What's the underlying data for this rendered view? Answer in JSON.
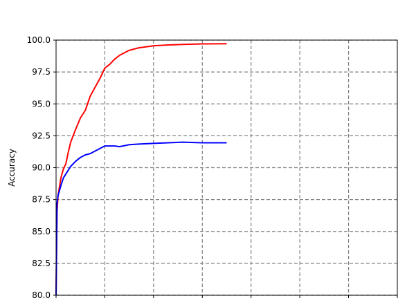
{
  "chart_data": {
    "type": "line",
    "title": "",
    "xlabel": "",
    "ylabel": "Accuracy",
    "ylim": [
      80.0,
      100.0
    ],
    "y_ticks": [
      "80.0",
      "82.5",
      "85.0",
      "87.5",
      "90.0",
      "92.5",
      "95.0",
      "97.5",
      "100.0"
    ],
    "x_ticks": [],
    "xlim": [
      0,
      700
    ],
    "grid": true,
    "grid_style": "dashed",
    "legend": "none",
    "series": [
      {
        "color": "#ff0000",
        "x": [
          0,
          2,
          4,
          7,
          10,
          15,
          20,
          25,
          30,
          40,
          50,
          60,
          70,
          80,
          90,
          100,
          110,
          120,
          130,
          150,
          170,
          200,
          230,
          260,
          300,
          350
        ],
        "y": [
          80.0,
          86.5,
          87.8,
          88.5,
          89.2,
          89.9,
          90.3,
          91.2,
          92.0,
          93.0,
          93.9,
          94.5,
          95.6,
          96.3,
          97.0,
          97.8,
          98.1,
          98.5,
          98.8,
          99.2,
          99.4,
          99.55,
          99.62,
          99.66,
          99.7,
          99.72
        ]
      },
      {
        "color": "#0000ff",
        "x": [
          0,
          2,
          4,
          7,
          10,
          15,
          20,
          25,
          30,
          40,
          50,
          60,
          70,
          80,
          90,
          100,
          110,
          120,
          130,
          150,
          170,
          200,
          230,
          260,
          300,
          350
        ],
        "y": [
          80.0,
          87.2,
          87.8,
          88.2,
          88.6,
          89.2,
          89.5,
          89.8,
          90.1,
          90.5,
          90.8,
          91.0,
          91.1,
          91.3,
          91.5,
          91.7,
          91.7,
          91.7,
          91.65,
          91.8,
          91.85,
          91.9,
          91.95,
          92.0,
          91.95,
          91.95
        ]
      }
    ]
  }
}
